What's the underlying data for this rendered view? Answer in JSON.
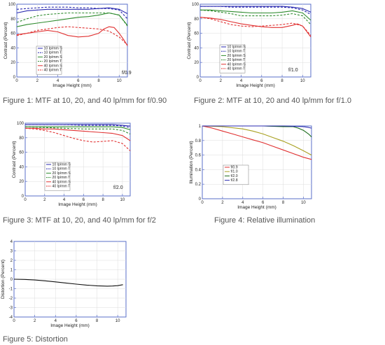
{
  "colors": {
    "frame": "#5a6fc8",
    "blue": "#2a2ab0",
    "green": "#2e8b2e",
    "red": "#e03030",
    "olive": "#a8a020",
    "darkgreen": "#1a6a1a",
    "black": "#111111"
  },
  "chart_data": [
    {
      "type": "line",
      "caption": "Figure 1:  MTF at 10, 20, and 40 lp/mm for f/0.90",
      "xlabel": "Image Height (mm)",
      "ylabel": "Contrast (Percent)",
      "fnumber": "f/0.9",
      "xlim": [
        0,
        10.8
      ],
      "ylim": [
        0,
        100
      ],
      "xticks": [
        "0",
        "2",
        "4",
        "6",
        "8",
        "10"
      ],
      "yticks": [
        "0",
        "20",
        "40",
        "60",
        "80",
        "100"
      ],
      "legend": "mid-left",
      "series": [
        {
          "name": "10 lp/mm S",
          "color": "blue",
          "dash": false,
          "x": [
            0,
            1,
            2,
            3,
            4,
            5,
            6,
            7,
            8,
            9,
            10,
            10.8
          ],
          "y": [
            88,
            91,
            92,
            93,
            93,
            93,
            93,
            93,
            94,
            95,
            93,
            87
          ]
        },
        {
          "name": "10 lp/mm T",
          "color": "blue",
          "dash": true,
          "x": [
            0,
            1,
            2,
            3,
            4,
            5,
            6,
            7,
            8,
            9,
            10,
            10.8
          ],
          "y": [
            93,
            94,
            95,
            96,
            96,
            96,
            95,
            95,
            94,
            94,
            92,
            80
          ]
        },
        {
          "name": "20 lp/mm S",
          "color": "green",
          "dash": false,
          "x": [
            0,
            1,
            2,
            3,
            4,
            5,
            6,
            7,
            8,
            9,
            10,
            10.8
          ],
          "y": [
            69,
            72,
            74,
            76,
            78,
            80,
            82,
            83,
            85,
            88,
            85,
            71
          ]
        },
        {
          "name": "20 lp/mm T",
          "color": "green",
          "dash": true,
          "x": [
            0,
            1,
            2,
            3,
            4,
            5,
            6,
            7,
            8,
            9,
            10,
            10.8
          ],
          "y": [
            75,
            80,
            84,
            86,
            87,
            88,
            88,
            88,
            88,
            88,
            85,
            70
          ]
        },
        {
          "name": "40 lp/mm S",
          "color": "red",
          "dash": false,
          "x": [
            0,
            1,
            2,
            3,
            4,
            5,
            6,
            7,
            8,
            8.5,
            9,
            9.5,
            10,
            10.5,
            10.8
          ],
          "y": [
            58,
            60,
            62,
            64,
            62,
            57,
            55,
            56,
            60,
            66,
            69,
            68,
            60,
            50,
            43
          ]
        },
        {
          "name": "40 lp/mm T",
          "color": "red",
          "dash": true,
          "x": [
            0,
            1,
            2,
            3,
            4,
            5,
            6,
            7,
            8,
            9,
            10,
            10.8
          ],
          "y": [
            57,
            60,
            64,
            66,
            68,
            69,
            68,
            67,
            66,
            63,
            55,
            44
          ]
        }
      ]
    },
    {
      "type": "line",
      "caption": "Figure 2:  MTF at 10, 20 and 40 lp/mm for f/1.0",
      "xlabel": "Image Height (mm)",
      "ylabel": "Contrast (Percent)",
      "fnumber": "f/1.0",
      "xlim": [
        0,
        10.8
      ],
      "ylim": [
        0,
        100
      ],
      "xticks": [
        "0",
        "2",
        "4",
        "6",
        "8",
        "10"
      ],
      "yticks": [
        "0",
        "20",
        "40",
        "60",
        "80",
        "100"
      ],
      "legend": "lower-left",
      "series": [
        {
          "name": "10 lp/mm S",
          "color": "blue",
          "dash": false,
          "x": [
            0,
            1,
            2,
            3,
            4,
            5,
            6,
            7,
            8,
            9,
            10,
            10.8
          ],
          "y": [
            97,
            97,
            97,
            97,
            97,
            97,
            97,
            97,
            97,
            96,
            94,
            89
          ]
        },
        {
          "name": "10 lp/mm T",
          "color": "blue",
          "dash": true,
          "x": [
            0,
            1,
            2,
            3,
            4,
            5,
            6,
            7,
            8,
            9,
            10,
            10.8
          ],
          "y": [
            97,
            97,
            97,
            96,
            96,
            96,
            96,
            96,
            96,
            95,
            92,
            86
          ]
        },
        {
          "name": "20 lp/mm S",
          "color": "green",
          "dash": false,
          "x": [
            0,
            1,
            2,
            3,
            4,
            5,
            6,
            7,
            8,
            9,
            10,
            10.8
          ],
          "y": [
            92,
            92,
            91,
            90,
            89,
            88,
            88,
            88,
            89,
            91,
            88,
            78
          ]
        },
        {
          "name": "20 lp/mm T",
          "color": "green",
          "dash": true,
          "x": [
            0,
            1,
            2,
            3,
            4,
            5,
            6,
            7,
            8,
            9,
            10,
            10.8
          ],
          "y": [
            92,
            91,
            89,
            87,
            84,
            84,
            84,
            84,
            85,
            87,
            84,
            72
          ]
        },
        {
          "name": "40 lp/mm S",
          "color": "red",
          "dash": false,
          "x": [
            0,
            1,
            2,
            3,
            4,
            5,
            6,
            7,
            8,
            9,
            9.5,
            10,
            10.8
          ],
          "y": [
            82,
            81,
            79,
            76,
            73,
            71,
            69,
            68,
            68,
            71,
            73,
            70,
            55
          ]
        },
        {
          "name": "40 lp/mm T",
          "color": "red",
          "dash": true,
          "x": [
            0,
            1,
            2,
            3,
            4,
            5,
            6,
            7,
            8,
            9,
            10,
            10.8
          ],
          "y": [
            82,
            80,
            76,
            72,
            70,
            69,
            70,
            71,
            72,
            74,
            70,
            57
          ]
        }
      ]
    },
    {
      "type": "line",
      "caption": "Figure 3:  MTF at 10, 20, and 40 lp/mm for f/2",
      "xlabel": "Image Height (mm)",
      "ylabel": "Contrast (Percent)",
      "fnumber": "f/2.0",
      "xlim": [
        0,
        10.8
      ],
      "ylim": [
        0,
        100
      ],
      "xticks": [
        "0",
        "2",
        "4",
        "6",
        "8",
        "10"
      ],
      "yticks": [
        "0",
        "20",
        "40",
        "60",
        "80",
        "100"
      ],
      "legend": "lower-left",
      "series": [
        {
          "name": "10 lp/mm S",
          "color": "blue",
          "dash": false,
          "x": [
            0,
            2,
            4,
            6,
            8,
            9,
            10,
            10.8
          ],
          "y": [
            98,
            98,
            98,
            98,
            98,
            98,
            97,
            96
          ]
        },
        {
          "name": "10 lp/mm T",
          "color": "blue",
          "dash": true,
          "x": [
            0,
            2,
            4,
            6,
            8,
            9,
            10,
            10.8
          ],
          "y": [
            98,
            98,
            98,
            97,
            97,
            97,
            96,
            94
          ]
        },
        {
          "name": "20 lp/mm S",
          "color": "green",
          "dash": false,
          "x": [
            0,
            2,
            4,
            6,
            8,
            9,
            10,
            10.8
          ],
          "y": [
            95,
            95,
            95,
            95,
            95,
            95,
            94,
            91
          ]
        },
        {
          "name": "20 lp/mm T",
          "color": "green",
          "dash": true,
          "x": [
            0,
            2,
            4,
            6,
            8,
            9,
            10,
            10.8
          ],
          "y": [
            95,
            94,
            93,
            92,
            92,
            92,
            90,
            85
          ]
        },
        {
          "name": "40 lp/mm S",
          "color": "red",
          "dash": false,
          "x": [
            0,
            1,
            2,
            3,
            4,
            5,
            6,
            7,
            8,
            9,
            10,
            10.8
          ],
          "y": [
            93,
            93,
            92,
            92,
            91,
            90,
            89,
            88,
            87,
            86,
            83,
            76
          ]
        },
        {
          "name": "40 lp/mm T",
          "color": "red",
          "dash": true,
          "x": [
            0,
            1,
            2,
            3,
            4,
            5,
            6,
            7,
            8,
            9,
            10,
            10.8
          ],
          "y": [
            93,
            92,
            90,
            87,
            83,
            79,
            76,
            74,
            75,
            76,
            72,
            62
          ]
        }
      ]
    },
    {
      "type": "line",
      "caption": "Figure 4:  Relative illumination",
      "xlabel": "Image Height (mm)",
      "ylabel": "Illumination (Percent)",
      "fnumber": "",
      "xlim": [
        0,
        10.8
      ],
      "ylim": [
        0,
        1
      ],
      "xticks": [
        "0",
        "2",
        "4",
        "6",
        "8",
        "10"
      ],
      "yticks": [
        "0",
        "0.2",
        "0.4",
        "0.6",
        "0.8",
        "1"
      ],
      "legend": "lower-left",
      "series": [
        {
          "name": "f/0.9",
          "color": "red",
          "dash": false,
          "x": [
            0,
            1,
            2,
            3,
            4,
            5,
            6,
            7,
            8,
            9,
            10,
            10.8
          ],
          "y": [
            1.0,
            0.97,
            0.93,
            0.89,
            0.85,
            0.81,
            0.77,
            0.72,
            0.67,
            0.62,
            0.57,
            0.54
          ]
        },
        {
          "name": "f/1.0",
          "color": "olive",
          "dash": false,
          "x": [
            0,
            2,
            4,
            5,
            6,
            7,
            8,
            9,
            10,
            10.8
          ],
          "y": [
            1.0,
            0.99,
            0.96,
            0.93,
            0.89,
            0.84,
            0.79,
            0.73,
            0.66,
            0.6
          ]
        },
        {
          "name": "f/2.0",
          "color": "darkgreen",
          "dash": false,
          "x": [
            0,
            2,
            4,
            6,
            8,
            9,
            9.5,
            10,
            10.5,
            10.8
          ],
          "y": [
            1.0,
            1.0,
            1.0,
            1.0,
            0.99,
            0.99,
            0.97,
            0.94,
            0.89,
            0.85
          ]
        },
        {
          "name": "f/2.8",
          "color": "blue",
          "dash": false,
          "x": [
            0,
            2,
            4,
            6,
            8,
            10,
            10.5,
            10.8
          ],
          "y": [
            1.0,
            1.0,
            1.0,
            1.0,
            1.0,
            0.99,
            0.98,
            0.97
          ]
        }
      ]
    },
    {
      "type": "line",
      "caption": "Figure 5:  Distortion",
      "xlabel": "Image Height (mm)",
      "ylabel": "Distortion (Percent)",
      "fnumber": "",
      "xlim": [
        0,
        10.8
      ],
      "ylim": [
        -4,
        4
      ],
      "xticks": [
        "0",
        "2",
        "4",
        "6",
        "8",
        "10"
      ],
      "yticks": [
        "-4",
        "-3",
        "-2",
        "-1",
        "0",
        "1",
        "2",
        "3",
        "4"
      ],
      "legend": "none",
      "series": [
        {
          "name": "",
          "color": "black",
          "dash": false,
          "x": [
            0,
            1,
            2,
            3,
            4,
            5,
            6,
            7,
            8,
            9,
            9.5,
            10,
            10.5
          ],
          "y": [
            0,
            -0.02,
            -0.08,
            -0.17,
            -0.28,
            -0.4,
            -0.52,
            -0.62,
            -0.7,
            -0.73,
            -0.72,
            -0.68,
            -0.58
          ]
        }
      ]
    }
  ]
}
